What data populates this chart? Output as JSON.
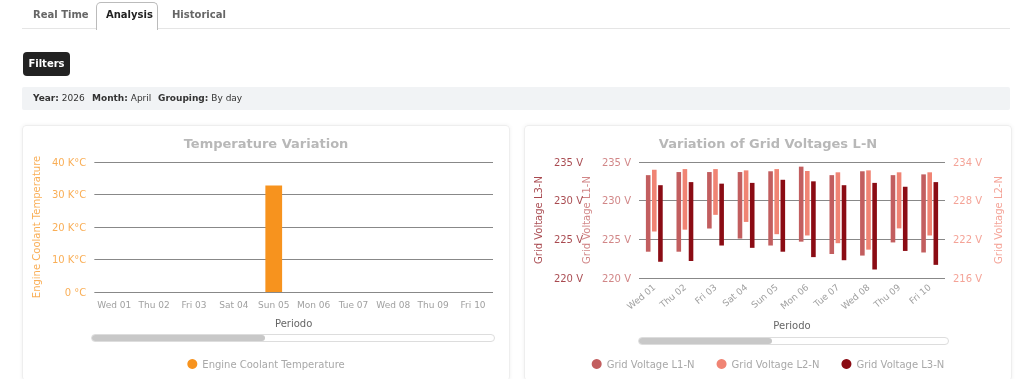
{
  "chart_data": [
    {
      "type": "other",
      "annotations": [
        "Real Time",
        "Analysis",
        "Historical",
        "Filters",
        "Year:",
        "2026",
        "Month:",
        "April",
        "Grouping:",
        "By day"
      ]
    },
    {
      "type": "bar",
      "title": "Temperature Variation",
      "xlabel": "Periodo",
      "ylabel": "Engine Coolant Temperature",
      "categories": [
        "Wed 01",
        "Thu 02",
        "Fri 03",
        "Sat 04",
        "Sun 05",
        "Mon 06",
        "Tue 07",
        "Wed 08",
        "Thu 09",
        "Fri 10"
      ],
      "series": [
        {
          "name": "Engine Coolant Temperature",
          "color": "#f7931e",
          "values": [
            null,
            null,
            null,
            null,
            32.8,
            null,
            null,
            null,
            null,
            null
          ]
        }
      ],
      "ylim": [
        0,
        40
      ],
      "yticks": [
        {
          "value": 0,
          "label": "0 °C"
        },
        {
          "value": 10,
          "label": "10 K°C"
        },
        {
          "value": 20,
          "label": "20 K°C"
        },
        {
          "value": 30,
          "label": "30 K°C"
        },
        {
          "value": 40,
          "label": "40 K°C"
        }
      ],
      "grid": "y",
      "legend": "bottom"
    },
    {
      "type": "bar",
      "title": "Variation of Grid Voltages L-N",
      "xlabel": "Periodo",
      "ylabel": "Grid Voltage L1-N",
      "y2label": "Grid Voltage L2-N",
      "y3label": "Grid Voltage L3-N",
      "categories": [
        "Wed 01",
        "Thu 02",
        "Fri 03",
        "Sat 04",
        "Sun 05",
        "Mon 06",
        "Tue 07",
        "Wed 08",
        "Thu 09",
        "Fri 10"
      ],
      "series": [
        {
          "name": "Grid Voltage L1-N",
          "color": "#c25e5f",
          "axis": "y",
          "base": [
            223.4,
            223.4,
            226.4,
            225.1,
            224.2,
            224.7,
            223.1,
            222.9,
            224.6,
            223.3
          ],
          "values": [
            9.9,
            10.3,
            7.3,
            8.6,
            9.6,
            9.7,
            10.2,
            10.9,
            8.7,
            10.1
          ]
        },
        {
          "name": "Grid Voltage L2-N",
          "color": "#f08474",
          "axis": "y2",
          "base": [
            223.2,
            223.5,
            225.8,
            224.7,
            222.8,
            222.6,
            221.4,
            220.4,
            223.7,
            222.6
          ],
          "values": [
            9.6,
            9.4,
            7.1,
            8.0,
            10.1,
            10.0,
            11.0,
            12.3,
            8.7,
            9.8
          ]
        },
        {
          "name": "Grid Voltage L3-N",
          "color": "#8b0c14",
          "axis": "y3",
          "base": [
            222.1,
            222.2,
            224.2,
            223.9,
            223.4,
            222.7,
            222.3,
            221.1,
            223.5,
            221.7
          ],
          "values": [
            9.9,
            10.2,
            8.0,
            8.4,
            9.3,
            9.8,
            9.7,
            11.2,
            8.3,
            10.7
          ]
        }
      ],
      "ylim": [
        220,
        235
      ],
      "yticks": [
        {
          "value": 220,
          "label": "220 V"
        },
        {
          "value": 225,
          "label": "225 V"
        },
        {
          "value": 230,
          "label": "230 V"
        },
        {
          "value": 235,
          "label": "235 V"
        }
      ],
      "y2lim": [
        216,
        234
      ],
      "y2ticks": [
        {
          "value": 216,
          "label": "216 V"
        },
        {
          "value": 222,
          "label": "222 V"
        },
        {
          "value": 228,
          "label": "228 V"
        },
        {
          "value": 234,
          "label": "234 V"
        }
      ],
      "y3lim": [
        220,
        235
      ],
      "y3ticks": [
        {
          "value": 220,
          "label": "220 V"
        },
        {
          "value": 225,
          "label": "225 V"
        },
        {
          "value": 230,
          "label": "230 V"
        },
        {
          "value": 235,
          "label": "235 V"
        }
      ],
      "grid": "y",
      "legend": "bottom"
    }
  ]
}
